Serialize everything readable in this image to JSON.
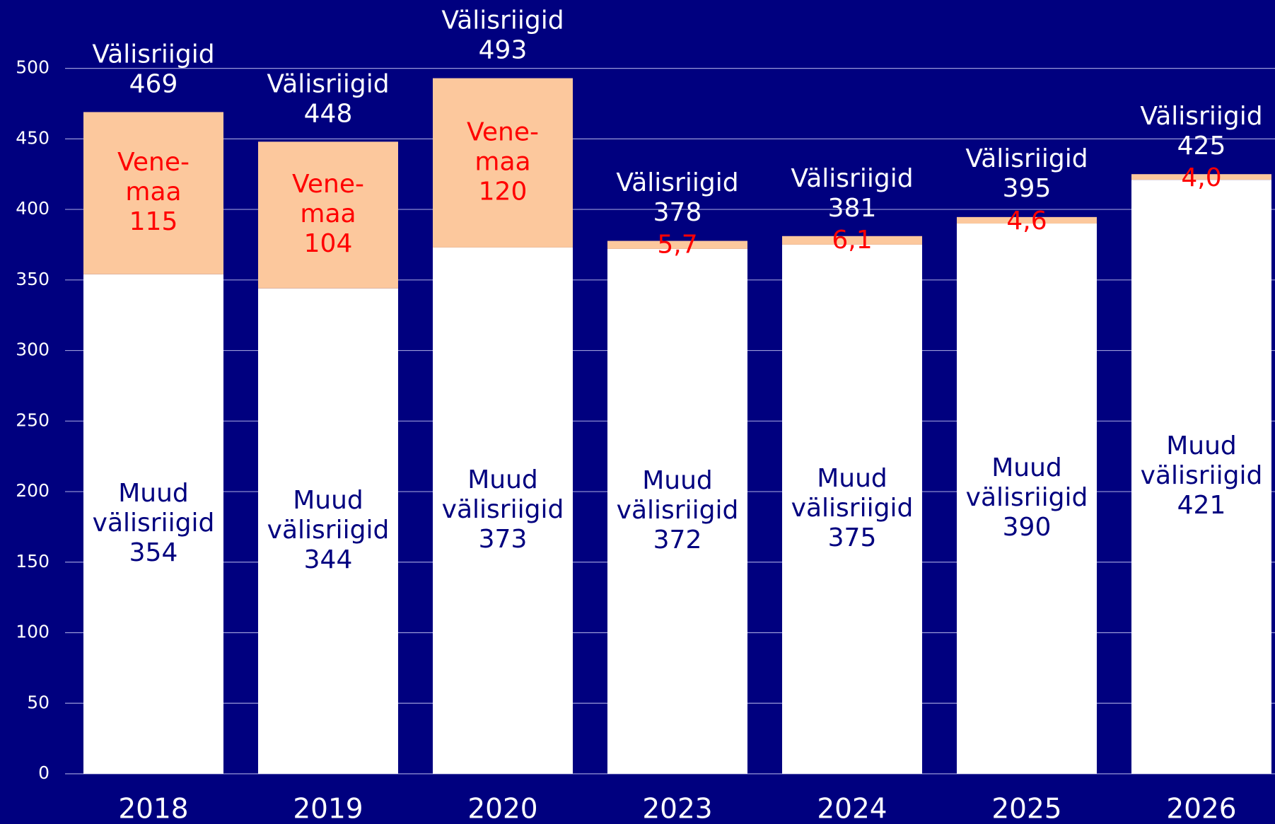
{
  "chart_data": {
    "type": "stacked_bar",
    "categories": [
      "2018",
      "2019",
      "2020",
      "2023",
      "2024",
      "2025",
      "2026"
    ],
    "series": [
      {
        "name": "Muud välisriigid",
        "color": "#ffffff",
        "label_color": "#00007f",
        "values": [
          354,
          344,
          373,
          372,
          375,
          390,
          421
        ]
      },
      {
        "name": "Vene-maa",
        "color": "#fcc89d",
        "label_color": "#ff0000",
        "values": [
          115,
          104,
          120,
          5.7,
          6.1,
          4.6,
          4.0
        ],
        "value_labels": [
          "115",
          "104",
          "120",
          "5,7",
          "6,1",
          "4,6",
          "4,0"
        ]
      }
    ],
    "total_name": "Välisriigid",
    "totals": [
      469,
      448,
      493,
      378,
      381,
      395,
      425
    ],
    "ylim": [
      0,
      500
    ],
    "yticks": [
      0,
      50,
      100,
      150,
      200,
      250,
      300,
      350,
      400,
      450,
      500
    ],
    "grid": true
  }
}
